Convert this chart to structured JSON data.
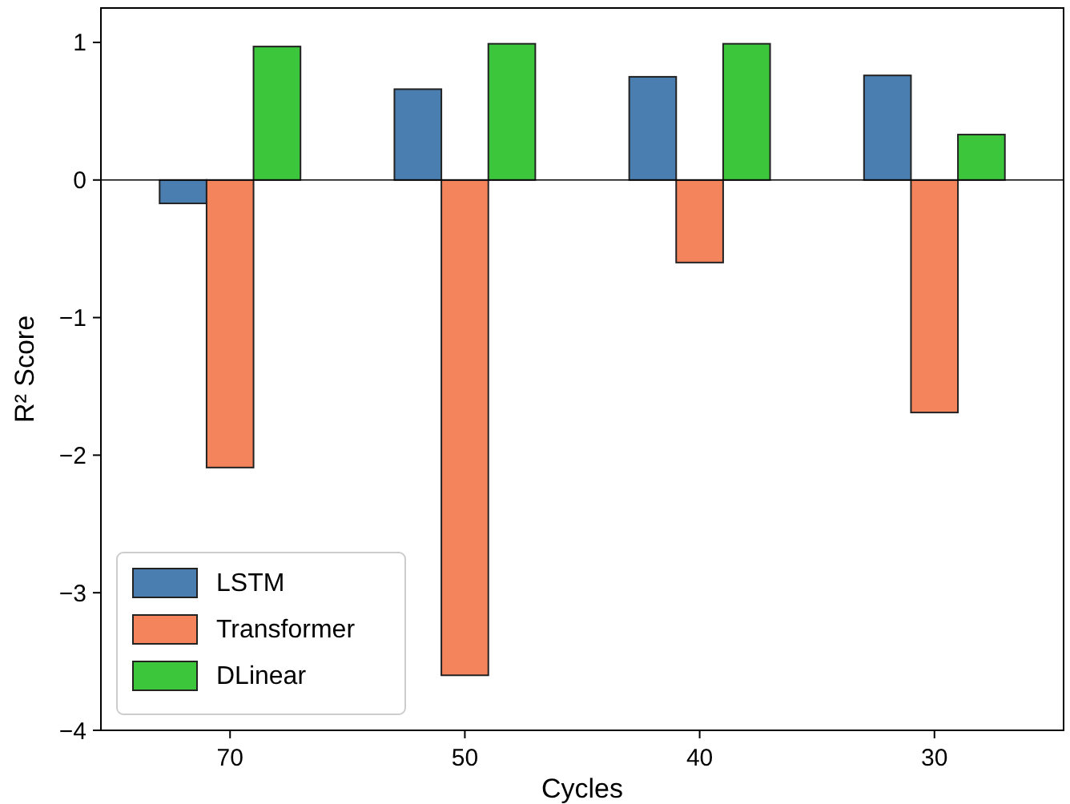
{
  "chart_data": {
    "type": "bar",
    "xlabel": "Cycles",
    "ylabel": "R² Score",
    "categories": [
      "70",
      "50",
      "40",
      "30"
    ],
    "series": [
      {
        "name": "LSTM",
        "color": "#4a7eb0",
        "values": [
          -0.17,
          0.66,
          0.75,
          0.76
        ]
      },
      {
        "name": "Transformer",
        "color": "#f4845c",
        "values": [
          -2.09,
          -3.6,
          -0.6,
          -1.69
        ]
      },
      {
        "name": "DLinear",
        "color": "#3cc63c",
        "values": [
          0.97,
          0.99,
          0.99,
          0.33
        ]
      }
    ],
    "ylim": [
      -4,
      1.25
    ],
    "yticks": [
      {
        "value": -4,
        "label": "−4"
      },
      {
        "value": -3,
        "label": "−3"
      },
      {
        "value": -2,
        "label": "−2"
      },
      {
        "value": -1,
        "label": "−1"
      },
      0,
      1
    ],
    "ref_lines": [
      {
        "axis": "y",
        "value": 0,
        "color": "#000000"
      }
    ],
    "grid": false,
    "legend": "bottom left"
  }
}
